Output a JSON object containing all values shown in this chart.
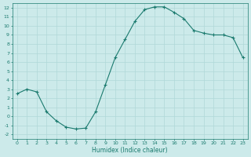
{
  "x": [
    0,
    1,
    2,
    3,
    4,
    5,
    6,
    7,
    8,
    9,
    10,
    11,
    12,
    13,
    14,
    15,
    16,
    17,
    18,
    19,
    20,
    21,
    22,
    23
  ],
  "y": [
    2.5,
    3.0,
    2.7,
    0.5,
    -0.5,
    -1.2,
    -1.4,
    -1.3,
    0.5,
    3.5,
    6.5,
    8.5,
    10.5,
    11.8,
    12.1,
    12.1,
    11.5,
    10.8,
    9.5,
    9.2,
    9.0,
    9.0,
    8.7,
    6.5
  ],
  "xlabel": "Humidex (Indice chaleur)",
  "ylim": [
    -2.5,
    12.5
  ],
  "xlim": [
    -0.5,
    23.5
  ],
  "yticks": [
    -2,
    -1,
    0,
    1,
    2,
    3,
    4,
    5,
    6,
    7,
    8,
    9,
    10,
    11,
    12
  ],
  "xticks": [
    0,
    1,
    2,
    3,
    4,
    5,
    6,
    7,
    8,
    9,
    10,
    11,
    12,
    13,
    14,
    15,
    16,
    17,
    18,
    19,
    20,
    21,
    22,
    23
  ],
  "line_color": "#1a7a6e",
  "marker_color": "#1a7a6e",
  "bg_color": "#cceaea",
  "grid_color": "#b0d8d8",
  "text_color": "#1a7a6e"
}
